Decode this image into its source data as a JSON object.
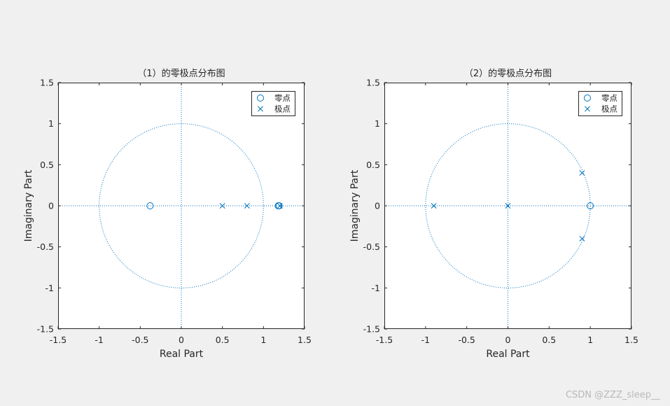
{
  "watermark": "CSDN @ZZZ_sleep__",
  "chart_data": [
    {
      "type": "scatter",
      "title": "（1）的零极点分布图",
      "xlabel": "Real Part",
      "ylabel": "Imaginary Part",
      "xlim": [
        -1.5,
        1.5
      ],
      "ylim": [
        -1.5,
        1.5
      ],
      "xticks": [
        -1.5,
        -1,
        -0.5,
        0,
        0.5,
        1,
        1.5
      ],
      "yticks": [
        -1.5,
        -1,
        -0.5,
        0,
        0.5,
        1,
        1.5
      ],
      "grid": false,
      "unit_circle": true,
      "legend_position": "top-right",
      "series": [
        {
          "name": "零点",
          "marker": "circle",
          "color": "#0072bd",
          "points": [
            [
              -0.38,
              0
            ],
            [
              1.18,
              0
            ],
            [
              1.19,
              0
            ]
          ]
        },
        {
          "name": "极点",
          "marker": "cross",
          "color": "#0072bd",
          "points": [
            [
              0.5,
              0
            ],
            [
              0.8,
              0
            ],
            [
              1.2,
              0
            ]
          ]
        }
      ]
    },
    {
      "type": "scatter",
      "title": "（2）的零极点分布图",
      "xlabel": "Real Part",
      "ylabel": "Imaginary Part",
      "xlim": [
        -1.5,
        1.5
      ],
      "ylim": [
        -1.5,
        1.5
      ],
      "xticks": [
        -1.5,
        -1,
        -0.5,
        0,
        0.5,
        1,
        1.5
      ],
      "yticks": [
        -1.5,
        -1,
        -0.5,
        0,
        0.5,
        1,
        1.5
      ],
      "grid": false,
      "unit_circle": true,
      "legend_position": "top-right",
      "series": [
        {
          "name": "零点",
          "marker": "circle",
          "color": "#0072bd",
          "points": [
            [
              1,
              0
            ]
          ]
        },
        {
          "name": "极点",
          "marker": "cross",
          "color": "#0072bd",
          "points": [
            [
              -0.9,
              0
            ],
            [
              0,
              0
            ],
            [
              0.9,
              0.4
            ],
            [
              0.9,
              -0.4
            ]
          ]
        }
      ]
    }
  ]
}
